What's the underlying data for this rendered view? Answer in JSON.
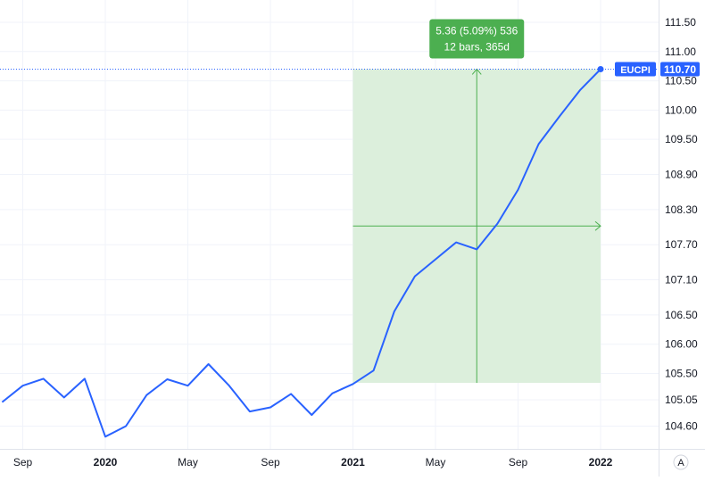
{
  "colors": {
    "background": "#ffffff",
    "grid": "#f0f3fa",
    "axis_line": "#e0e3eb",
    "axis_text": "#131722",
    "series_line": "#2962ff",
    "last_value_bg": "#2962ff",
    "last_value_text": "#ffffff",
    "measure_fill": "#dcefdc",
    "measure_line": "#4caf50",
    "measure_label_bg": "#4caf50",
    "measure_label_text": "#ffffff",
    "scale_button_border": "#d1d4dc"
  },
  "chart_data": {
    "type": "line",
    "symbol": "EUCPI",
    "last_value": "110.70",
    "y_ticks": [
      {
        "value": 111.5,
        "label": "111.50"
      },
      {
        "value": 111.0,
        "label": "111.00"
      },
      {
        "value": 110.5,
        "label": "110.50"
      },
      {
        "value": 110.0,
        "label": "110.00"
      },
      {
        "value": 109.5,
        "label": "109.50"
      },
      {
        "value": 108.9,
        "label": "108.90"
      },
      {
        "value": 108.3,
        "label": "108.30"
      },
      {
        "value": 107.7,
        "label": "107.70"
      },
      {
        "value": 107.1,
        "label": "107.10"
      },
      {
        "value": 106.5,
        "label": "106.50"
      },
      {
        "value": 106.0,
        "label": "106.00"
      },
      {
        "value": 105.5,
        "label": "105.50"
      },
      {
        "value": 105.05,
        "label": "105.05"
      },
      {
        "value": 104.6,
        "label": "104.60"
      }
    ],
    "x_ticks": [
      {
        "date": "2019-09",
        "label": "Sep",
        "bold": false
      },
      {
        "date": "2020-01",
        "label": "2020",
        "bold": true
      },
      {
        "date": "2020-05",
        "label": "May",
        "bold": false
      },
      {
        "date": "2020-09",
        "label": "Sep",
        "bold": false
      },
      {
        "date": "2021-01",
        "label": "2021",
        "bold": true
      },
      {
        "date": "2021-05",
        "label": "May",
        "bold": false
      },
      {
        "date": "2021-09",
        "label": "Sep",
        "bold": false
      },
      {
        "date": "2022-01",
        "label": "2022",
        "bold": true
      }
    ],
    "series": [
      {
        "points": [
          {
            "x": "2019-08",
            "y": 105.01
          },
          {
            "x": "2019-09",
            "y": 105.29
          },
          {
            "x": "2019-10",
            "y": 105.41
          },
          {
            "x": "2019-11",
            "y": 105.09
          },
          {
            "x": "2019-12",
            "y": 105.41
          },
          {
            "x": "2020-01",
            "y": 104.42
          },
          {
            "x": "2020-02",
            "y": 104.6
          },
          {
            "x": "2020-03",
            "y": 105.13
          },
          {
            "x": "2020-04",
            "y": 105.4
          },
          {
            "x": "2020-05",
            "y": 105.29
          },
          {
            "x": "2020-06",
            "y": 105.66
          },
          {
            "x": "2020-07",
            "y": 105.29
          },
          {
            "x": "2020-08",
            "y": 104.85
          },
          {
            "x": "2020-09",
            "y": 104.92
          },
          {
            "x": "2020-10",
            "y": 105.15
          },
          {
            "x": "2020-11",
            "y": 104.79
          },
          {
            "x": "2020-12",
            "y": 105.16
          },
          {
            "x": "2021-01",
            "y": 105.32
          },
          {
            "x": "2021-02",
            "y": 105.55
          },
          {
            "x": "2021-03",
            "y": 106.56
          },
          {
            "x": "2021-04",
            "y": 107.16
          },
          {
            "x": "2021-05",
            "y": 107.45
          },
          {
            "x": "2021-06",
            "y": 107.74
          },
          {
            "x": "2021-07",
            "y": 107.62
          },
          {
            "x": "2021-08",
            "y": 108.06
          },
          {
            "x": "2021-09",
            "y": 108.64
          },
          {
            "x": "2021-10",
            "y": 109.42
          },
          {
            "x": "2021-11",
            "y": 109.89
          },
          {
            "x": "2021-12",
            "y": 110.34
          },
          {
            "x": "2022-01",
            "y": 110.7
          }
        ]
      }
    ],
    "measurement": {
      "from": {
        "x": "2021-01",
        "y": 105.34
      },
      "to": {
        "x": "2022-01",
        "y": 110.7
      },
      "label_line1": "5.36 (5.09%) 536",
      "label_line2": "12 bars, 365d"
    },
    "scale_button": "A",
    "grid": true
  }
}
